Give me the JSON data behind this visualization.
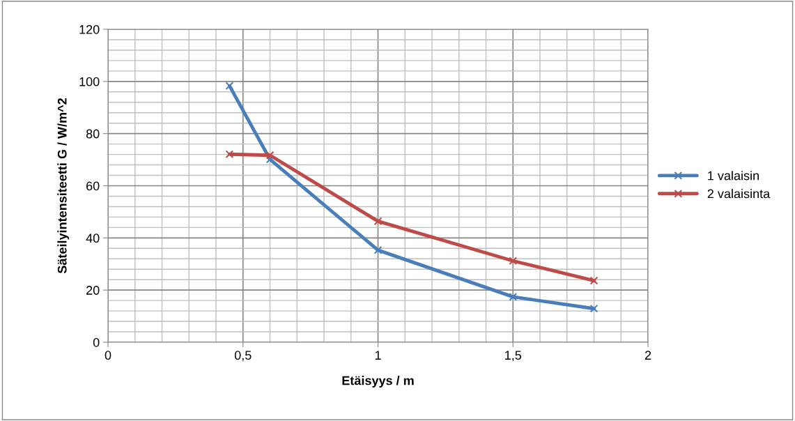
{
  "chart_data": {
    "type": "line",
    "xlabel": "Etäisyys / m",
    "ylabel": "Säteilyintensiteetti G / W/m^2",
    "x": [
      0.45,
      0.6,
      1,
      1.5,
      1.8
    ],
    "series": [
      {
        "name": "1 valaisin",
        "color": "#4a7ebb",
        "values": [
          98.3,
          70.1,
          35.3,
          17.4,
          12.9
        ]
      },
      {
        "name": "2 valaisinta",
        "color": "#be4b48",
        "values": [
          72.1,
          71.7,
          46.4,
          31.2,
          23.6
        ]
      }
    ],
    "xlim": [
      0,
      2
    ],
    "ylim": [
      0,
      120
    ],
    "xticks": [
      0,
      {
        "value": 0.1,
        "label": null
      },
      {
        "value": 0.2,
        "label": null
      },
      {
        "value": 0.3,
        "label": null
      },
      {
        "value": 0.4,
        "label": null
      },
      {
        "value": 0.5,
        "label": "0,5"
      },
      {
        "value": 0.6,
        "label": null
      },
      {
        "value": 0.7,
        "label": null
      },
      {
        "value": 0.8,
        "label": null
      },
      {
        "value": 0.9,
        "label": null
      },
      1,
      {
        "value": 1.1,
        "label": null
      },
      {
        "value": 1.2,
        "label": null
      },
      {
        "value": 1.3,
        "label": null
      },
      {
        "value": 1.4,
        "label": null
      },
      {
        "value": 1.5,
        "label": "1,5"
      },
      {
        "value": 1.6,
        "label": null
      },
      {
        "value": 1.7,
        "label": null
      },
      {
        "value": 1.8,
        "label": null
      },
      {
        "value": 1.9,
        "label": null
      },
      2
    ],
    "yticks": [
      0,
      {
        "value": 4,
        "label": null
      },
      {
        "value": 8,
        "label": null
      },
      {
        "value": 12,
        "label": null
      },
      {
        "value": 16,
        "label": null
      },
      20,
      {
        "value": 24,
        "label": null
      },
      {
        "value": 28,
        "label": null
      },
      {
        "value": 32,
        "label": null
      },
      {
        "value": 36,
        "label": null
      },
      40,
      {
        "value": 44,
        "label": null
      },
      {
        "value": 48,
        "label": null
      },
      {
        "value": 52,
        "label": null
      },
      {
        "value": 56,
        "label": null
      },
      60,
      {
        "value": 64,
        "label": null
      },
      {
        "value": 68,
        "label": null
      },
      {
        "value": 72,
        "label": null
      },
      {
        "value": 76,
        "label": null
      },
      80,
      {
        "value": 84,
        "label": null
      },
      {
        "value": 88,
        "label": null
      },
      {
        "value": 92,
        "label": null
      },
      {
        "value": 96,
        "label": null
      },
      100,
      {
        "value": 104,
        "label": null
      },
      {
        "value": 108,
        "label": null
      },
      {
        "value": 112,
        "label": null
      },
      {
        "value": 116,
        "label": null
      },
      120
    ],
    "grid": true,
    "legend": "right",
    "marker": "cross",
    "line_style": "solid"
  }
}
